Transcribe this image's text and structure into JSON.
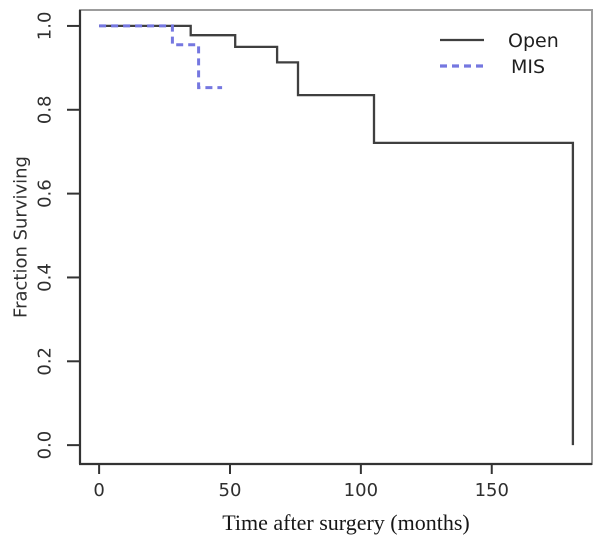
{
  "chart_data": {
    "type": "line",
    "subtype": "kaplan-meier-step",
    "title": "",
    "xlabel": "Time after surgery (months)",
    "ylabel": "Fraction Surviving",
    "xlim": [
      -7.3,
      188.3
    ],
    "ylim": [
      -0.045,
      1.038
    ],
    "grid": false,
    "legend_position": "top-right",
    "x_ticks": {
      "values": [
        0,
        50,
        100,
        150
      ],
      "labels": [
        "0",
        "50",
        "100",
        "150"
      ]
    },
    "y_ticks": {
      "values": [
        0.0,
        0.2,
        0.4,
        0.6,
        0.8,
        1.0
      ],
      "labels": [
        "0.0",
        "0.2",
        "0.4",
        "0.6",
        "0.8",
        "1.0"
      ]
    },
    "series": [
      {
        "name": "Open",
        "line_style": "solid",
        "color": "#3f3f3f",
        "points": [
          [
            0,
            1.0
          ],
          [
            35,
            1.0
          ],
          [
            35,
            0.978
          ],
          [
            52,
            0.978
          ],
          [
            52,
            0.95
          ],
          [
            68,
            0.95
          ],
          [
            68,
            0.913
          ],
          [
            76,
            0.913
          ],
          [
            76,
            0.835
          ],
          [
            105,
            0.835
          ],
          [
            105,
            0.721
          ],
          [
            181,
            0.721
          ],
          [
            181,
            0.0
          ]
        ]
      },
      {
        "name": "MIS",
        "line_style": "dashed",
        "color": "#7577e0",
        "points": [
          [
            0,
            1.0
          ],
          [
            28,
            1.0
          ],
          [
            28,
            0.955
          ],
          [
            38,
            0.955
          ],
          [
            38,
            0.853
          ],
          [
            47,
            0.853
          ]
        ]
      }
    ]
  },
  "colors": {
    "background": "#ffffff",
    "axis_dark": "#333333",
    "box_gray": "#9c9c9c",
    "tick_text": "#2f2f2f"
  }
}
